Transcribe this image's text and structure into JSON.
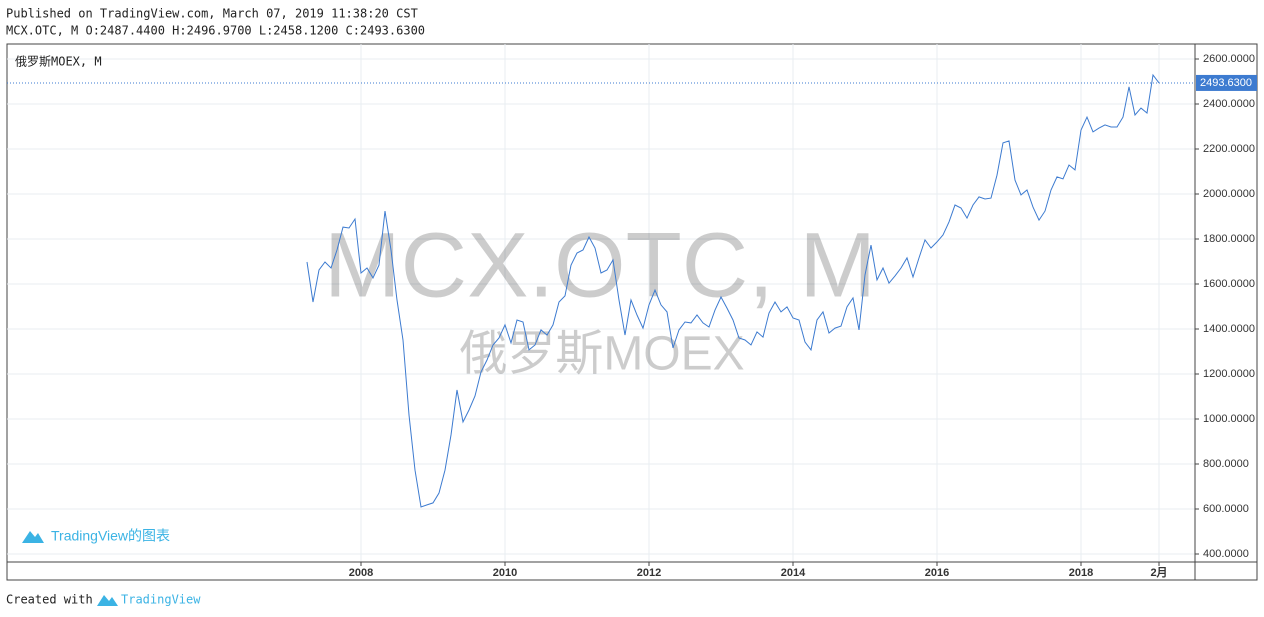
{
  "header": {
    "published": "Published on TradingView.com, March 07, 2019 11:38:20 CST",
    "ohlc": "MCX.OTC, M O:2487.4400 H:2496.9700 L:2458.1200 C:2493.6300"
  },
  "footer": {
    "created": "Created with",
    "brand": "TradingView"
  },
  "chart_data": {
    "type": "line",
    "pane_label": "俄罗斯MOEX, M",
    "watermark": "MCX.OTC, M",
    "watermark_sub": "俄罗斯MOEX",
    "logo_text": "TradingView的图表",
    "color": "#3d7bd0",
    "x": [
      "2007-04",
      "2007-05",
      "2007-06",
      "2007-07",
      "2007-08",
      "2007-09",
      "2007-10",
      "2007-11",
      "2007-12",
      "2008-01",
      "2008-02",
      "2008-03",
      "2008-04",
      "2008-05",
      "2008-06",
      "2008-07",
      "2008-08",
      "2008-09",
      "2008-10",
      "2008-11",
      "2008-12",
      "2009-01",
      "2009-02",
      "2009-03",
      "2009-04",
      "2009-05",
      "2009-06",
      "2009-07",
      "2009-08",
      "2009-09",
      "2009-10",
      "2009-11",
      "2009-12",
      "2010-01",
      "2010-02",
      "2010-03",
      "2010-04",
      "2010-05",
      "2010-06",
      "2010-07",
      "2010-08",
      "2010-09",
      "2010-10",
      "2010-11",
      "2010-12",
      "2011-01",
      "2011-02",
      "2011-03",
      "2011-04",
      "2011-05",
      "2011-06",
      "2011-07",
      "2011-08",
      "2011-09",
      "2011-10",
      "2011-11",
      "2011-12",
      "2012-01",
      "2012-02",
      "2012-03",
      "2012-04",
      "2012-05",
      "2012-06",
      "2012-07",
      "2012-08",
      "2012-09",
      "2012-10",
      "2012-11",
      "2012-12",
      "2013-01",
      "2013-02",
      "2013-03",
      "2013-04",
      "2013-05",
      "2013-06",
      "2013-07",
      "2013-08",
      "2013-09",
      "2013-10",
      "2013-11",
      "2013-12",
      "2014-01",
      "2014-02",
      "2014-03",
      "2014-04",
      "2014-05",
      "2014-06",
      "2014-07",
      "2014-08",
      "2014-09",
      "2014-10",
      "2014-11",
      "2014-12",
      "2015-01",
      "2015-02",
      "2015-03",
      "2015-04",
      "2015-05",
      "2015-06",
      "2015-07",
      "2015-08",
      "2015-09",
      "2015-10",
      "2015-11",
      "2015-12",
      "2016-01",
      "2016-02",
      "2016-03",
      "2016-04",
      "2016-05",
      "2016-06",
      "2016-07",
      "2016-08",
      "2016-09",
      "2016-10",
      "2016-11",
      "2016-12",
      "2017-01",
      "2017-02",
      "2017-03",
      "2017-04",
      "2017-05",
      "2017-06",
      "2017-07",
      "2017-08",
      "2017-09",
      "2017-10",
      "2017-11",
      "2017-12",
      "2018-01",
      "2018-02",
      "2018-03",
      "2018-04",
      "2018-05",
      "2018-06",
      "2018-07",
      "2018-08",
      "2018-09",
      "2018-10",
      "2018-11",
      "2018-12",
      "2019-01",
      "2019-02"
    ],
    "values": [
      1698,
      1520,
      1662,
      1698,
      1671,
      1751,
      1853,
      1849,
      1889,
      1649,
      1671,
      1627,
      1684,
      1924,
      1751,
      1529,
      1351,
      1018,
      773,
      609,
      618,
      627,
      671,
      773,
      929,
      1129,
      987,
      1040,
      1102,
      1209,
      1262,
      1329,
      1360,
      1418,
      1338,
      1440,
      1431,
      1307,
      1329,
      1396,
      1373,
      1418,
      1520,
      1547,
      1684,
      1738,
      1751,
      1809,
      1760,
      1649,
      1662,
      1707,
      1529,
      1373,
      1529,
      1462,
      1404,
      1507,
      1573,
      1507,
      1476,
      1316,
      1396,
      1431,
      1427,
      1462,
      1427,
      1409,
      1484,
      1542,
      1493,
      1440,
      1360,
      1351,
      1329,
      1387,
      1364,
      1471,
      1520,
      1476,
      1498,
      1449,
      1440,
      1342,
      1307,
      1440,
      1476,
      1382,
      1404,
      1413,
      1498,
      1538,
      1396,
      1640,
      1773,
      1618,
      1671,
      1604,
      1636,
      1671,
      1716,
      1631,
      1716,
      1796,
      1760,
      1787,
      1818,
      1876,
      1951,
      1938,
      1893,
      1951,
      1987,
      1978,
      1982,
      2084,
      2227,
      2236,
      2062,
      1996,
      2018,
      1942,
      1884,
      1924,
      2018,
      2076,
      2067,
      2129,
      2107,
      2284,
      2342,
      2276,
      2293,
      2307,
      2298,
      2298,
      2342,
      2476,
      2351,
      2382,
      2360,
      2529,
      2493.63
    ],
    "last_price": {
      "value": 2493.63,
      "label": "2493.6300"
    },
    "xlim": [
      "2003-02",
      "2019-08"
    ],
    "xticks": [
      {
        "value": "2008-01",
        "label": "2008"
      },
      {
        "value": "2010-01",
        "label": "2010"
      },
      {
        "value": "2012-01",
        "label": "2012"
      },
      {
        "value": "2014-01",
        "label": "2014"
      },
      {
        "value": "2016-01",
        "label": "2016"
      },
      {
        "value": "2018-01",
        "label": "2018"
      },
      {
        "value": "2019-02",
        "label": "2月"
      }
    ],
    "ylim": [
      364.4,
      2666.7
    ],
    "yticks": [
      {
        "value": 400,
        "label": "400.0000"
      },
      {
        "value": 600,
        "label": "600.0000"
      },
      {
        "value": 800,
        "label": "800.0000"
      },
      {
        "value": 1000,
        "label": "1000.0000"
      },
      {
        "value": 1200,
        "label": "1200.0000"
      },
      {
        "value": 1400,
        "label": "1400.0000"
      },
      {
        "value": 1600,
        "label": "1600.0000"
      },
      {
        "value": 1800,
        "label": "1800.0000"
      },
      {
        "value": 2000,
        "label": "2000.0000"
      },
      {
        "value": 2200,
        "label": "2200.0000"
      },
      {
        "value": 2400,
        "label": "2400.0000"
      },
      {
        "value": 2600,
        "label": "2600.0000"
      }
    ],
    "grid": true
  }
}
